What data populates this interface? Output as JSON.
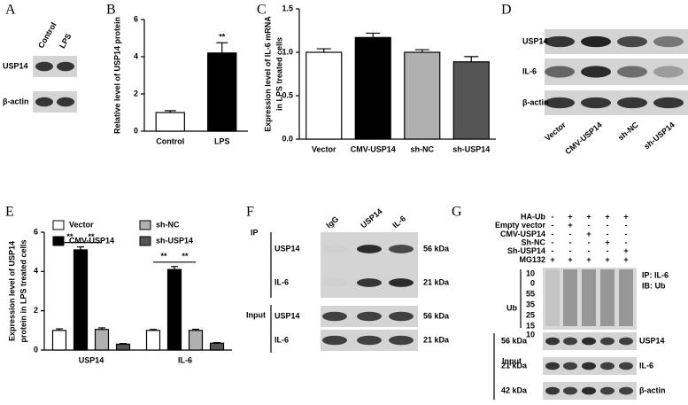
{
  "panel_letters": [
    "A",
    "B",
    "C",
    "D",
    "E",
    "F",
    "G"
  ],
  "chart_data": [
    {
      "type": "bar",
      "ylabel": [
        "Relative level of USP14 protein"
      ],
      "categories": [
        "Control",
        "LPS"
      ],
      "values": [
        1.0,
        4.2
      ],
      "errors": [
        0.1,
        0.55
      ],
      "colors": [
        "#ffffff",
        "#000000"
      ],
      "ylim": [
        0,
        6
      ],
      "yticks": [
        0,
        2,
        4,
        6
      ],
      "annotations": [
        "**"
      ]
    },
    {
      "type": "bar",
      "ylabel": [
        "Expression level of IL-6 mRNA",
        "in LPS treated cells"
      ],
      "categories": [
        "Vector",
        "CMV-USP14",
        "sh-NC",
        "sh-USP14"
      ],
      "values": [
        1.0,
        1.17,
        1.0,
        0.89
      ],
      "errors": [
        0.04,
        0.05,
        0.03,
        0.06
      ],
      "colors": [
        "#ffffff",
        "#000000",
        "#b0b0b0",
        "#555555"
      ],
      "ylim": [
        0,
        1.5
      ],
      "yticks": [
        {
          "value": 0,
          "label": "0.0"
        },
        {
          "value": 0.5,
          "label": "0.5"
        },
        {
          "value": 1,
          "label": "1.0"
        },
        {
          "value": 1.5,
          "label": "1.5"
        }
      ]
    },
    {
      "type": "grouped_bar",
      "ylabel": [
        "Expression level of USP14",
        "protein in LPS treated cells"
      ],
      "categories": [
        "USP14",
        "IL-6"
      ],
      "series": [
        {
          "name": "Vector",
          "color": "#ffffff",
          "values": [
            1.0,
            1.0
          ],
          "errors": [
            0.08,
            0.05
          ]
        },
        {
          "name": "CMV-USP14",
          "color": "#000000",
          "values": [
            5.1,
            4.1
          ],
          "errors": [
            0.15,
            0.15
          ]
        },
        {
          "name": "sh-NC",
          "color": "#b0b0b0",
          "values": [
            1.05,
            1.0
          ],
          "errors": [
            0.08,
            0.06
          ]
        },
        {
          "name": "sh-USP14",
          "color": "#555555",
          "values": [
            0.3,
            0.35
          ],
          "errors": [
            0.03,
            0.03
          ]
        }
      ],
      "ylim": [
        0,
        6
      ],
      "yticks": [
        0,
        2,
        4,
        6
      ],
      "annotations": [
        "**",
        "**",
        "**",
        "**"
      ]
    }
  ],
  "blot_a": {
    "lanes": [
      "Control",
      "LPS"
    ],
    "rows": [
      "USP14",
      "β-actin"
    ]
  },
  "blot_d": {
    "lanes": [
      "Vector",
      "CMV-USP14",
      "sh-NC",
      "sh-USP14"
    ],
    "rows": [
      "USP14",
      "IL-6",
      "β-actin"
    ]
  },
  "blot_f": {
    "lanes": [
      "IgG",
      "USP14",
      "IL-6"
    ],
    "ip_label": "IP",
    "input_label": "Input",
    "ip_rows": [
      {
        "label": "USP14",
        "size": "56 kDa"
      },
      {
        "label": "IL-6",
        "size": "21 kDa"
      }
    ],
    "input_rows": [
      {
        "label": "USP14",
        "size": "56 kDa"
      },
      {
        "label": "IL-6",
        "size": "21 kDa"
      }
    ]
  },
  "blot_g": {
    "conditions": [
      {
        "name": "HA-Ub",
        "signs": [
          "-",
          "+",
          "+",
          "+",
          "+"
        ]
      },
      {
        "name": "Empty vector",
        "signs": [
          "-",
          "+",
          "-",
          "-",
          "-"
        ]
      },
      {
        "name": "CMV-USP14",
        "signs": [
          "-",
          "-",
          "+",
          "-",
          "-"
        ]
      },
      {
        "name": "Sh-NC",
        "signs": [
          "-",
          "-",
          "-",
          "+",
          "-"
        ]
      },
      {
        "name": "Sh-USP14",
        "signs": [
          "-",
          "-",
          "-",
          "-",
          "+"
        ]
      },
      {
        "name": "MG132",
        "signs": [
          "+",
          "+",
          "+",
          "+",
          "+"
        ]
      }
    ],
    "ub_label": "Ub",
    "markers": [
      "10",
      "0",
      "55",
      "35",
      "25",
      "15",
      "10"
    ],
    "ip_label": "IP: IL-6",
    "ib_label": "IB: Ub",
    "input_label": "Input",
    "input_rows": [
      {
        "size": "56 kDa",
        "label": "USP14"
      },
      {
        "size": "21 kDa",
        "label": "IL-6"
      },
      {
        "size": "42 kDa",
        "label": "β-actin"
      }
    ]
  }
}
